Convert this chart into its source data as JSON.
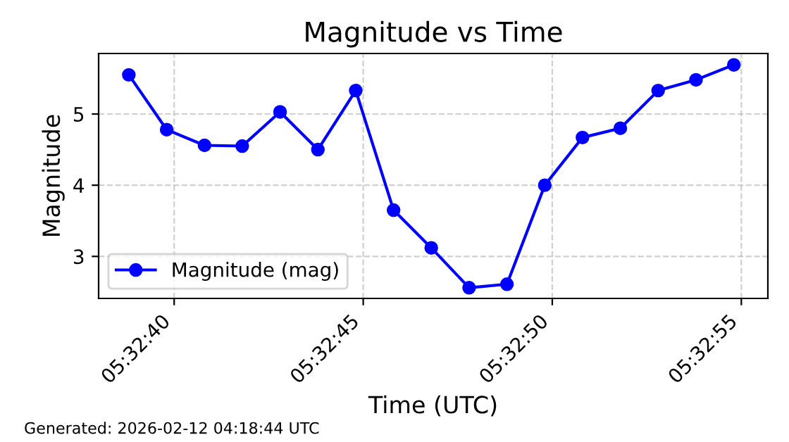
{
  "chart_data": {
    "type": "line",
    "title": "Magnitude vs Time",
    "xlabel": "Time (UTC)",
    "ylabel": "Magnitude",
    "x": [
      5.544111,
      5.544389,
      5.544667,
      5.544944,
      5.545222,
      5.5455,
      5.545778,
      5.546056,
      5.546333,
      5.546611,
      5.546889,
      5.547167,
      5.547444,
      5.547722,
      5.548,
      5.548278,
      5.548556
    ],
    "series": [
      {
        "name": "Magnitude (mag)",
        "color": "#0000ff",
        "values": [
          5.55,
          4.78,
          4.56,
          4.55,
          5.03,
          4.5,
          5.33,
          3.65,
          3.12,
          2.56,
          2.61,
          4.0,
          4.67,
          4.8,
          5.33,
          5.48,
          5.69
        ]
      }
    ],
    "xlim": [
      5.543889,
      5.548806
    ],
    "xticks": [
      {
        "value": 5.544444,
        "label": "05:32:40"
      },
      {
        "value": 5.545833,
        "label": "05:32:45"
      },
      {
        "value": 5.547222,
        "label": "05:32:50"
      },
      {
        "value": 5.548611,
        "label": "05:32:55"
      }
    ],
    "ylim": [
      2.41,
      5.85
    ],
    "yticks": [
      3,
      4,
      5
    ],
    "grid": true,
    "legend": "bottom left",
    "marker": "circle",
    "line_style": "solid",
    "annotations": [
      "Generated: 2026-02-12 04:18:44 UTC"
    ]
  }
}
